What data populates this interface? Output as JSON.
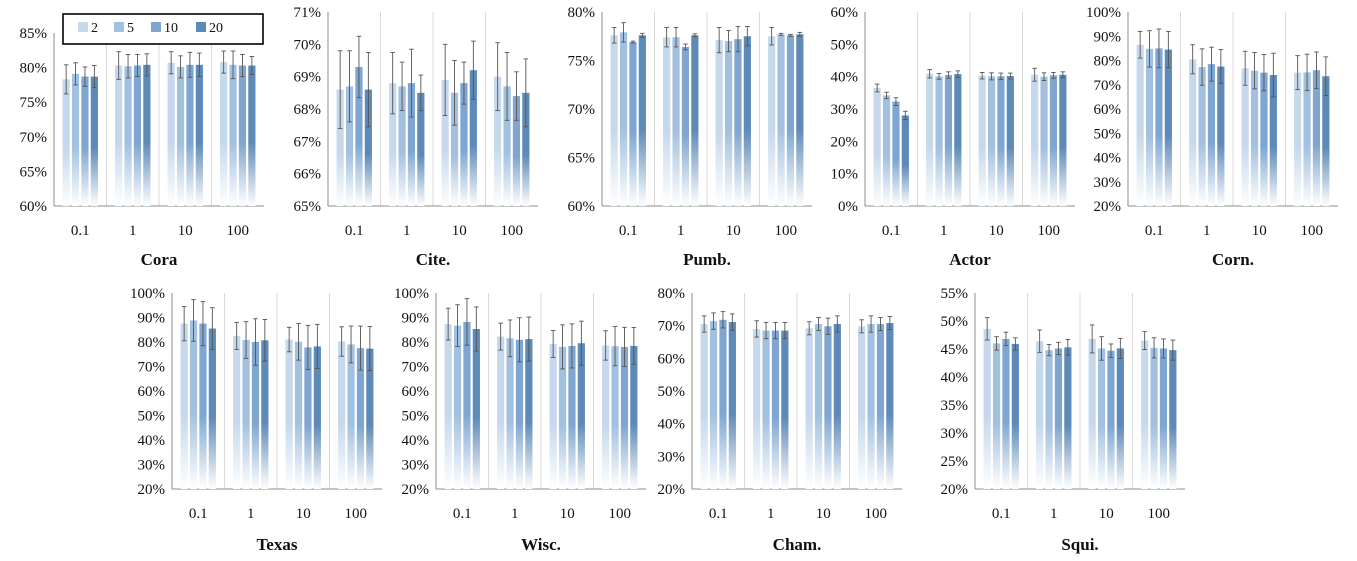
{
  "legend": {
    "entries": [
      "2",
      "5",
      "10",
      "20"
    ],
    "colors": [
      "#c5d8ec",
      "#a2c0e0",
      "#7ea6d1",
      "#5e8ab8"
    ]
  },
  "chart_data": [
    {
      "type": "bar",
      "title": "Cora",
      "categories": [
        "0.1",
        "1",
        "10",
        "100"
      ],
      "ylim": [
        60,
        85
      ],
      "yticks": [
        60,
        65,
        70,
        75,
        80,
        85
      ],
      "tick_suffix": "%",
      "series": [
        {
          "name": "2",
          "values": [
            78.3,
            80.3,
            80.7,
            80.8
          ],
          "errors": [
            2.1,
            2.0,
            1.6,
            1.6
          ]
        },
        {
          "name": "5",
          "values": [
            79.1,
            80.2,
            80.1,
            80.4
          ],
          "errors": [
            1.6,
            1.7,
            1.6,
            2.0
          ]
        },
        {
          "name": "10",
          "values": [
            78.7,
            80.3,
            80.4,
            80.3
          ],
          "errors": [
            1.4,
            1.6,
            1.8,
            1.6
          ]
        },
        {
          "name": "20",
          "values": [
            78.7,
            80.4,
            80.4,
            80.3
          ],
          "errors": [
            1.6,
            1.6,
            1.7,
            1.3
          ]
        }
      ]
    },
    {
      "type": "bar",
      "title": "Cite.",
      "categories": [
        "0.1",
        "1",
        "10",
        "100"
      ],
      "ylim": [
        65,
        71
      ],
      "yticks": [
        65,
        66,
        67,
        68,
        69,
        70,
        71
      ],
      "tick_suffix": "%",
      "series": [
        {
          "name": "2",
          "values": [
            68.6,
            68.8,
            68.9,
            69.0
          ],
          "errors": [
            1.2,
            0.95,
            1.1,
            1.05
          ]
        },
        {
          "name": "5",
          "values": [
            68.7,
            68.7,
            68.5,
            68.7
          ],
          "errors": [
            1.1,
            0.75,
            1.0,
            1.05
          ]
        },
        {
          "name": "10",
          "values": [
            69.3,
            68.8,
            68.8,
            68.4
          ],
          "errors": [
            0.95,
            1.05,
            0.65,
            0.75
          ]
        },
        {
          "name": "20",
          "values": [
            68.6,
            68.5,
            69.2,
            68.5
          ],
          "errors": [
            1.15,
            0.55,
            0.9,
            1.05
          ]
        }
      ]
    },
    {
      "type": "bar",
      "title": "Pumb.",
      "categories": [
        "0.1",
        "1",
        "10",
        "100"
      ],
      "ylim": [
        60,
        80
      ],
      "yticks": [
        60,
        65,
        70,
        75,
        80
      ],
      "tick_suffix": "%",
      "series": [
        {
          "name": "2",
          "values": [
            77.6,
            77.4,
            77.1,
            77.5
          ],
          "errors": [
            0.8,
            1.0,
            1.3,
            0.9
          ]
        },
        {
          "name": "5",
          "values": [
            77.9,
            77.4,
            77.0,
            77.7
          ],
          "errors": [
            1.0,
            1.0,
            1.1,
            0.1
          ]
        },
        {
          "name": "10",
          "values": [
            76.9,
            76.4,
            77.2,
            77.6
          ],
          "errors": [
            0.1,
            0.3,
            1.3,
            0.1
          ]
        },
        {
          "name": "20",
          "values": [
            77.6,
            77.6,
            77.5,
            77.7
          ],
          "errors": [
            0.2,
            0.15,
            1.0,
            0.2
          ]
        }
      ]
    },
    {
      "type": "bar",
      "title": "Actor",
      "categories": [
        "0.1",
        "1",
        "10",
        "100"
      ],
      "ylim": [
        0,
        60
      ],
      "yticks": [
        0,
        10,
        20,
        30,
        40,
        50,
        60
      ],
      "tick_suffix": "%",
      "series": [
        {
          "name": "2",
          "values": [
            36.5,
            40.9,
            40.3,
            40.6
          ],
          "errors": [
            1.2,
            1.3,
            1.0,
            2.0
          ]
        },
        {
          "name": "5",
          "values": [
            34.2,
            40.1,
            40.1,
            40.0
          ],
          "errors": [
            1.0,
            0.9,
            1.1,
            1.2
          ]
        },
        {
          "name": "10",
          "values": [
            32.3,
            40.5,
            40.1,
            40.4
          ],
          "errors": [
            1.2,
            1.0,
            1.0,
            0.9
          ]
        },
        {
          "name": "20",
          "values": [
            28.0,
            40.8,
            40.2,
            40.6
          ],
          "errors": [
            1.3,
            1.0,
            0.9,
            0.9
          ]
        }
      ]
    },
    {
      "type": "bar",
      "title": "Corn.",
      "categories": [
        "0.1",
        "1",
        "10",
        "100"
      ],
      "ylim": [
        20,
        100
      ],
      "yticks": [
        20,
        30,
        40,
        50,
        60,
        70,
        80,
        90,
        100
      ],
      "tick_suffix": "%",
      "series": [
        {
          "name": "2",
          "values": [
            86.5,
            80.5,
            76.8,
            75.0
          ],
          "errors": [
            5.5,
            6.0,
            7.0,
            7.0
          ]
        },
        {
          "name": "5",
          "values": [
            84.8,
            77.3,
            75.8,
            75.1
          ],
          "errors": [
            7.5,
            7.5,
            7.5,
            7.5
          ]
        },
        {
          "name": "10",
          "values": [
            85.0,
            78.5,
            75.0,
            76.0
          ],
          "errors": [
            8.0,
            7.0,
            7.5,
            7.5
          ]
        },
        {
          "name": "20",
          "values": [
            84.5,
            77.5,
            74.0,
            73.5
          ],
          "errors": [
            7.5,
            7.0,
            9.0,
            8.0
          ]
        }
      ]
    },
    {
      "type": "bar",
      "title": "Texas",
      "categories": [
        "0.1",
        "1",
        "10",
        "100"
      ],
      "ylim": [
        20,
        100
      ],
      "yticks": [
        20,
        30,
        40,
        50,
        60,
        70,
        80,
        90,
        100
      ],
      "tick_suffix": "%",
      "series": [
        {
          "name": "2",
          "values": [
            87.5,
            82.5,
            81.0,
            80.2
          ],
          "errors": [
            7.0,
            5.5,
            5.0,
            6.0
          ]
        },
        {
          "name": "5",
          "values": [
            88.8,
            80.8,
            80.1,
            79.0
          ],
          "errors": [
            8.5,
            7.5,
            7.5,
            7.5
          ]
        },
        {
          "name": "10",
          "values": [
            87.5,
            80.0,
            77.8,
            77.5
          ],
          "errors": [
            9.0,
            9.5,
            9.0,
            9.0
          ]
        },
        {
          "name": "20",
          "values": [
            85.5,
            80.7,
            78.2,
            77.3
          ],
          "errors": [
            8.5,
            8.5,
            9.0,
            9.0
          ]
        }
      ]
    },
    {
      "type": "bar",
      "title": "Wisc.",
      "categories": [
        "0.1",
        "1",
        "10",
        "100"
      ],
      "ylim": [
        20,
        100
      ],
      "yticks": [
        20,
        30,
        40,
        50,
        60,
        70,
        80,
        90,
        100
      ],
      "tick_suffix": "%",
      "series": [
        {
          "name": "2",
          "values": [
            87.3,
            82.2,
            79.2,
            78.6
          ],
          "errors": [
            6.5,
            5.5,
            5.5,
            6.0
          ]
        },
        {
          "name": "5",
          "values": [
            86.7,
            81.5,
            78.0,
            78.3
          ],
          "errors": [
            8.5,
            7.5,
            9.0,
            8.0
          ]
        },
        {
          "name": "10",
          "values": [
            88.2,
            80.9,
            78.4,
            78.0
          ],
          "errors": [
            9.5,
            9.0,
            9.0,
            8.0
          ]
        },
        {
          "name": "20",
          "values": [
            85.3,
            81.2,
            79.5,
            78.4
          ],
          "errors": [
            9.0,
            9.0,
            9.0,
            7.5
          ]
        }
      ]
    },
    {
      "type": "bar",
      "title": "Cham.",
      "categories": [
        "0.1",
        "1",
        "10",
        "100"
      ],
      "ylim": [
        20,
        80
      ],
      "yticks": [
        20,
        30,
        40,
        50,
        60,
        70,
        80
      ],
      "tick_suffix": "%",
      "series": [
        {
          "name": "2",
          "values": [
            70.5,
            69.0,
            69.2,
            69.8
          ],
          "errors": [
            2.5,
            2.5,
            2.0,
            2.0
          ]
        },
        {
          "name": "5",
          "values": [
            71.4,
            68.5,
            70.5,
            70.5
          ],
          "errors": [
            2.5,
            2.5,
            2.0,
            2.5
          ]
        },
        {
          "name": "10",
          "values": [
            71.8,
            68.5,
            69.8,
            70.5
          ],
          "errors": [
            2.5,
            2.5,
            2.5,
            2.0
          ]
        },
        {
          "name": "20",
          "values": [
            71.1,
            68.5,
            70.5,
            70.8
          ],
          "errors": [
            2.5,
            2.5,
            2.5,
            2.0
          ]
        }
      ]
    },
    {
      "type": "bar",
      "title": "Squi.",
      "categories": [
        "0.1",
        "1",
        "10",
        "100"
      ],
      "ylim": [
        20,
        55
      ],
      "yticks": [
        20,
        25,
        30,
        35,
        40,
        45,
        50,
        55
      ],
      "tick_suffix": "%",
      "series": [
        {
          "name": "2",
          "values": [
            48.6,
            46.4,
            46.8,
            46.5
          ],
          "errors": [
            2.0,
            2.0,
            2.5,
            1.6
          ]
        },
        {
          "name": "5",
          "values": [
            46.0,
            44.8,
            45.1,
            45.2
          ],
          "errors": [
            1.2,
            1.0,
            2.1,
            1.8
          ]
        },
        {
          "name": "10",
          "values": [
            46.8,
            45.1,
            44.7,
            45.1
          ],
          "errors": [
            1.2,
            1.1,
            1.2,
            1.7
          ]
        },
        {
          "name": "20",
          "values": [
            45.9,
            45.3,
            45.1,
            44.8
          ],
          "errors": [
            1.1,
            1.4,
            1.8,
            1.8
          ]
        }
      ]
    }
  ]
}
